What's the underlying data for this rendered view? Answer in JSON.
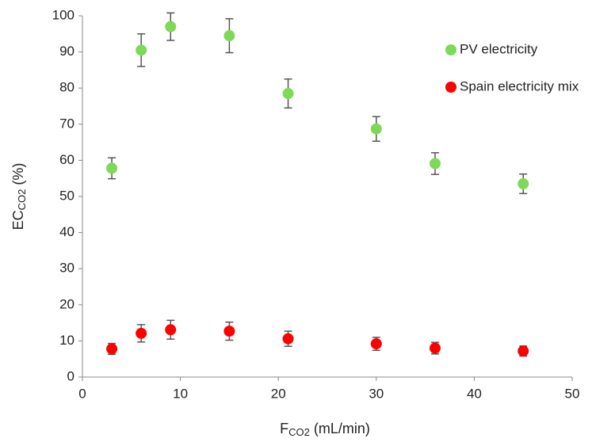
{
  "chart_data": {
    "type": "scatter",
    "xlabel": "F",
    "xlabel_sub": "CO2",
    "xlabel_unit": "(mL/min)",
    "ylabel": "EC",
    "ylabel_sub": "CO2",
    "ylabel_unit": "(%)",
    "x": [
      3,
      6,
      9,
      15,
      21,
      30,
      36,
      45
    ],
    "series": [
      {
        "name": "PV electricity",
        "color": "#7ed957",
        "values": [
          57.8,
          90.5,
          97,
          94.5,
          78.5,
          68.7,
          59.1,
          53.5
        ],
        "errors": [
          2.9,
          4.5,
          3.8,
          4.7,
          4,
          3.4,
          3,
          2.7
        ]
      },
      {
        "name": "Spain electricity mix",
        "color": "#ff0000",
        "values": [
          7.8,
          12.1,
          13.1,
          12.7,
          10.6,
          9.2,
          8,
          7.2
        ],
        "errors": [
          1.5,
          2.4,
          2.6,
          2.5,
          2.1,
          1.8,
          1.6,
          1.4
        ]
      }
    ],
    "xlim": [
      0,
      50
    ],
    "xticks": [
      0,
      10,
      20,
      30,
      40,
      50
    ],
    "ylim": [
      0,
      100
    ],
    "yticks": [
      0,
      10,
      20,
      30,
      40,
      50,
      60,
      70,
      80,
      90,
      100
    ],
    "grid": false,
    "legend": "upper right"
  }
}
